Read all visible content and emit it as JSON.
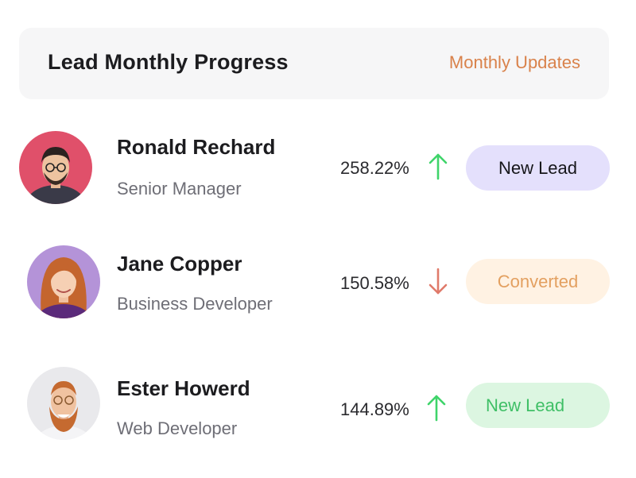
{
  "header": {
    "title": "Lead Monthly Progress",
    "link": "Monthly Updates"
  },
  "leads": [
    {
      "name": "Ronald Rechard",
      "role": "Senior Manager",
      "percent": "258.22%",
      "trend": "up",
      "status": "New Lead"
    },
    {
      "name": "Jane Copper",
      "role": "Business Developer",
      "percent": "150.58%",
      "trend": "down",
      "status": "Converted"
    },
    {
      "name": "Ester Howerd",
      "role": "Web Developer",
      "percent": "144.89%",
      "trend": "up",
      "status": "New Lead"
    }
  ],
  "colors": {
    "accent_link": "#d9824b",
    "trend_up": "#3fd46a",
    "trend_down": "#e07a6a",
    "badge_new_lead_primary": "#e4e0fc",
    "badge_converted": "#fff2e3",
    "badge_new_lead_secondary": "#dcf6e1"
  }
}
